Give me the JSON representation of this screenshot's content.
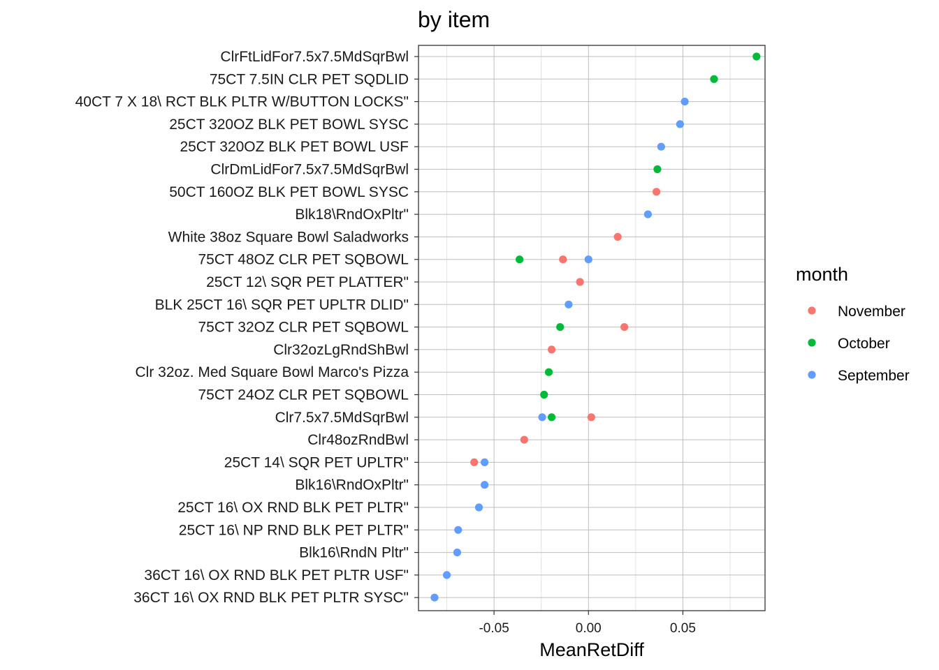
{
  "chart_data": {
    "type": "scatter",
    "title": "by item",
    "xlabel": "MeanRetDiff",
    "ylabel": "",
    "xlim": [
      -0.09,
      0.0935
    ],
    "x_ticks": [
      -0.05,
      0.0,
      0.05
    ],
    "x_tick_labels": [
      "-0.05",
      "0.00",
      "0.05"
    ],
    "grid": true,
    "legend": {
      "title": "month",
      "position": "right",
      "entries": [
        {
          "name": "November",
          "color": "#F8766D"
        },
        {
          "name": "October",
          "color": "#00BA38"
        },
        {
          "name": "September",
          "color": "#619CFF"
        }
      ]
    },
    "categories": [
      "ClrFtLidFor7.5x7.5MdSqrBwl",
      "75CT 7.5IN CLR PET SQDLID",
      "40CT 7 X 18\\ RCT BLK PLTR W/BUTTON LOCKS\"",
      "25CT 320OZ BLK PET BOWL SYSC",
      "25CT 320OZ BLK PET BOWL USF",
      "ClrDmLidFor7.5x7.5MdSqrBwl",
      "50CT 160OZ BLK PET BOWL SYSC",
      "Blk18\\RndOxPltr\"",
      "White 38oz Square Bowl Saladworks",
      "75CT 48OZ CLR PET SQBOWL",
      "25CT 12\\ SQR PET PLATTER\"",
      "BLK 25CT 16\\ SQR PET UPLTR DLID\"",
      "75CT 32OZ CLR PET SQBOWL",
      "Clr32ozLgRndShBwl",
      "Clr 32oz. Med Square Bowl Marco's Pizza",
      "75CT 24OZ CLR PET SQBOWL",
      "Clr7.5x7.5MdSqrBwl",
      "Clr48ozRndBwl",
      "25CT 14\\ SQR PET UPLTR\"",
      "Blk16\\RndOxPltr\"",
      "25CT 16\\ OX RND BLK PET PLTR\"",
      "25CT 16\\ NP RND BLK PET PLTR\"",
      "Blk16\\RndN Pltr\"",
      "36CT 16\\ OX RND BLK PET PLTR USF\"",
      "36CT 16\\ OX RND BLK PET PLTR SYSC\""
    ],
    "series": [
      {
        "name": "November",
        "points": [
          {
            "y": "50CT 160OZ BLK PET BOWL SYSC",
            "x": 0.036
          },
          {
            "y": "White 38oz Square Bowl Saladworks",
            "x": 0.0155
          },
          {
            "y": "75CT 48OZ CLR PET SQBOWL",
            "x": -0.0135
          },
          {
            "y": "25CT 12\\ SQR PET PLATTER\"",
            "x": -0.0045
          },
          {
            "y": "75CT 32OZ CLR PET SQBOWL",
            "x": 0.019
          },
          {
            "y": "Clr32ozLgRndShBwl",
            "x": -0.0195
          },
          {
            "y": "Clr7.5x7.5MdSqrBwl",
            "x": 0.0015
          },
          {
            "y": "Clr48ozRndBwl",
            "x": -0.034
          },
          {
            "y": "25CT 14\\ SQR PET UPLTR\"",
            "x": -0.0605
          }
        ]
      },
      {
        "name": "October",
        "points": [
          {
            "y": "ClrFtLidFor7.5x7.5MdSqrBwl",
            "x": 0.089
          },
          {
            "y": "75CT 7.5IN CLR PET SQDLID",
            "x": 0.0665
          },
          {
            "y": "ClrDmLidFor7.5x7.5MdSqrBwl",
            "x": 0.0365
          },
          {
            "y": "75CT 48OZ CLR PET SQBOWL",
            "x": -0.0365
          },
          {
            "y": "75CT 32OZ CLR PET SQBOWL",
            "x": -0.015
          },
          {
            "y": "Clr 32oz. Med Square Bowl Marco's Pizza",
            "x": -0.021
          },
          {
            "y": "75CT 24OZ CLR PET SQBOWL",
            "x": -0.0235
          },
          {
            "y": "Clr7.5x7.5MdSqrBwl",
            "x": -0.0195
          }
        ]
      },
      {
        "name": "September",
        "points": [
          {
            "y": "40CT 7 X 18\\ RCT BLK PLTR W/BUTTON LOCKS\"",
            "x": 0.051
          },
          {
            "y": "25CT 320OZ BLK PET BOWL SYSC",
            "x": 0.0485
          },
          {
            "y": "25CT 320OZ BLK PET BOWL USF",
            "x": 0.0385
          },
          {
            "y": "Blk18\\RndOxPltr\"",
            "x": 0.0315
          },
          {
            "y": "75CT 48OZ CLR PET SQBOWL",
            "x": 0.0
          },
          {
            "y": "BLK 25CT 16\\ SQR PET UPLTR DLID\"",
            "x": -0.0105
          },
          {
            "y": "Clr7.5x7.5MdSqrBwl",
            "x": -0.0245
          },
          {
            "y": "25CT 14\\ SQR PET UPLTR\"",
            "x": -0.055
          },
          {
            "y": "Blk16\\RndOxPltr\"",
            "x": -0.055
          },
          {
            "y": "25CT 16\\ OX RND BLK PET PLTR\"",
            "x": -0.058
          },
          {
            "y": "25CT 16\\ NP RND BLK PET PLTR\"",
            "x": -0.069
          },
          {
            "y": "Blk16\\RndN Pltr\"",
            "x": -0.0695
          },
          {
            "y": "36CT 16\\ OX RND BLK PET PLTR USF\"",
            "x": -0.075
          },
          {
            "y": "36CT 16\\ OX RND BLK PET PLTR SYSC\"",
            "x": -0.0815
          }
        ]
      }
    ]
  }
}
